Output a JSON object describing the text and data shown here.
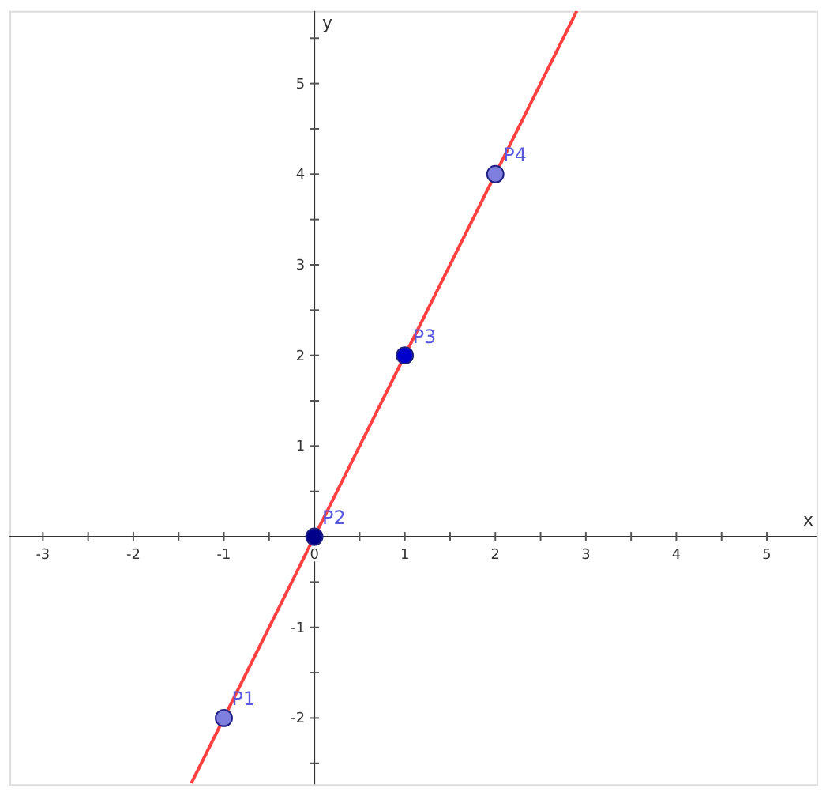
{
  "chart_data": {
    "type": "line",
    "xlabel": "x",
    "ylabel": "y",
    "xlim": [
      -3.37,
      5.55
    ],
    "ylim": [
      -2.73,
      5.8
    ],
    "xticks": [
      -3,
      {
        "value": -2.5,
        "label": null
      },
      -2,
      {
        "value": -1.5,
        "label": null
      },
      -1,
      {
        "value": -0.5,
        "label": null
      },
      {
        "value": 0,
        "label": "0"
      },
      {
        "value": 0.5,
        "label": null
      },
      1,
      {
        "value": 1.5,
        "label": null
      },
      2,
      {
        "value": 2.5,
        "label": null
      },
      3,
      {
        "value": 3.5,
        "label": null
      },
      4,
      {
        "value": 4.5,
        "label": null
      },
      5
    ],
    "yticks": [
      {
        "value": -2.5,
        "label": null
      },
      -2,
      {
        "value": -1.5,
        "label": null
      },
      -1,
      {
        "value": -0.5,
        "label": null
      },
      {
        "value": 0.5,
        "label": null
      },
      1,
      {
        "value": 1.5,
        "label": null
      },
      2,
      {
        "value": 2.5,
        "label": null
      },
      3,
      {
        "value": 3.5,
        "label": null
      },
      4,
      {
        "value": 4.5,
        "label": null
      },
      5,
      {
        "value": 5.5,
        "label": null
      }
    ],
    "grid": false,
    "series": [
      {
        "color": "#ff4040",
        "x": [
          -1.36,
          2.9
        ],
        "values": [
          -2.72,
          5.8
        ],
        "line_style": "solid"
      },
      {
        "type": "scatter",
        "marker": "circle",
        "x": [
          -1,
          0,
          1,
          2
        ],
        "values": [
          -2,
          0,
          2,
          4
        ],
        "colors": [
          "#7f7fe0",
          "#00008b",
          "#0000cc",
          "#7f7fe0"
        ]
      }
    ],
    "annotations": [
      {
        "text": "P1",
        "x": -1,
        "y": -2
      },
      {
        "text": "P2",
        "x": 0,
        "y": 0
      },
      {
        "text": "P3",
        "x": 1,
        "y": 2
      },
      {
        "text": "P4",
        "x": 2,
        "y": 4
      }
    ]
  }
}
